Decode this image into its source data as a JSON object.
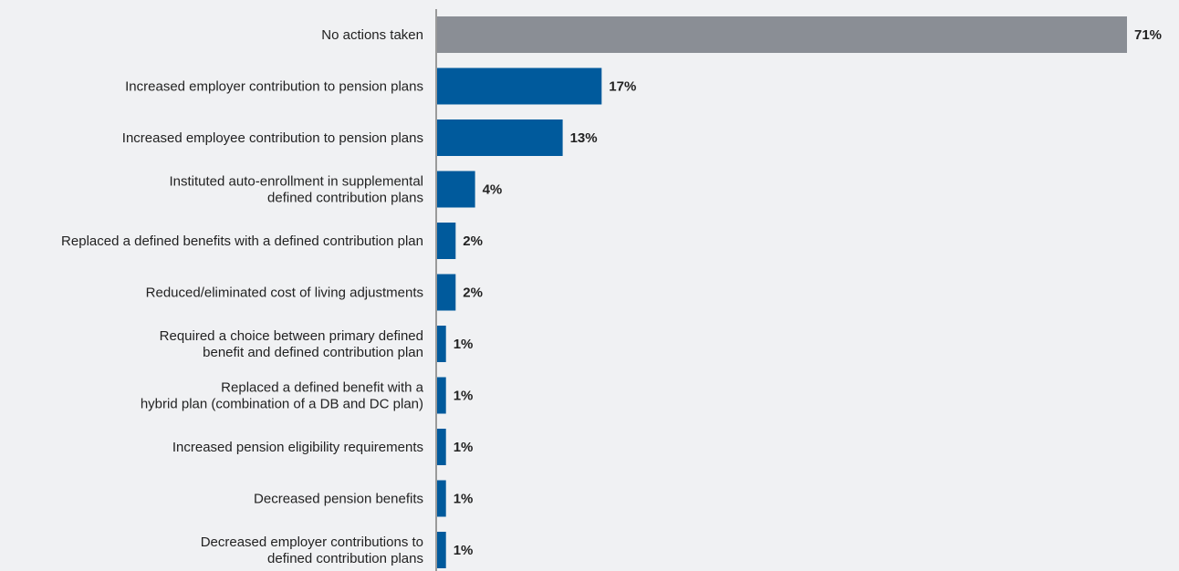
{
  "chart_data": {
    "type": "bar",
    "orientation": "horizontal",
    "categories": [
      "No actions taken",
      "Increased employer contribution to pension plans",
      "Increased employee contribution to pension plans",
      "Instituted auto-enrollment in supplemental\ndefined contribution plans",
      "Replaced a defined benefits with a defined contribution plan",
      "Reduced/eliminated cost of living adjustments",
      "Required a choice between primary defined\nbenefit and defined contribution plan",
      "Replaced a defined benefit with a\nhybrid plan (combination of a DB and DC plan)",
      "Increased pension eligibility requirements",
      "Decreased pension benefits",
      "Decreased employer contributions to\ndefined contribution plans"
    ],
    "values": [
      71,
      17,
      13,
      4,
      2,
      2,
      1,
      1,
      1,
      1,
      1
    ],
    "value_labels": [
      "71%",
      "17%",
      "13%",
      "4%",
      "2%",
      "2%",
      "1%",
      "1%",
      "1%",
      "1%",
      "1%"
    ],
    "bar_colors": [
      "#8a8e95",
      "#005a9c",
      "#005a9c",
      "#005a9c",
      "#005a9c",
      "#005a9c",
      "#005a9c",
      "#005a9c",
      "#005a9c",
      "#005a9c",
      "#005a9c"
    ],
    "axis_color": "#9a9a9a",
    "xlim": [
      0,
      71
    ],
    "grid": false,
    "legend": "none",
    "title": "",
    "xlabel": "",
    "ylabel": ""
  }
}
